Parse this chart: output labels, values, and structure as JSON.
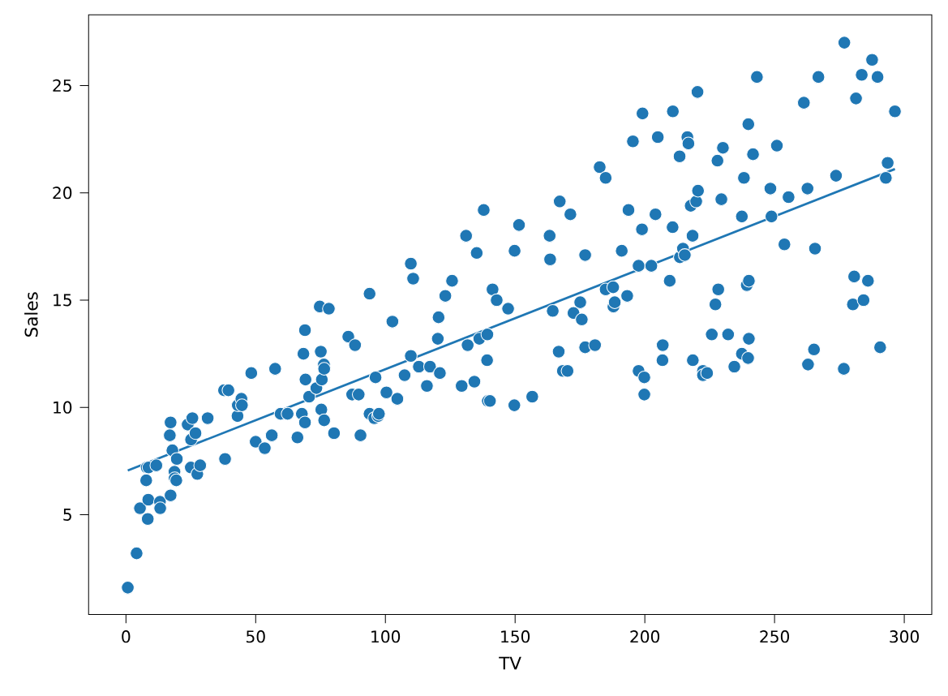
{
  "chart_data": {
    "type": "scatter",
    "xlabel": "TV",
    "ylabel": "Sales",
    "xlim": [
      -14.4,
      310.6
    ],
    "ylim": [
      0.35,
      28.3
    ],
    "xticks": [
      0,
      50,
      100,
      150,
      200,
      250,
      300
    ],
    "yticks": [
      5,
      10,
      15,
      20,
      25
    ],
    "grid": false,
    "series": [
      {
        "marker": "circle",
        "color": "#1f77b4",
        "x": [
          0.7,
          4.1,
          5.4,
          7.8,
          8.4,
          8.6,
          8.0,
          8.7,
          11.7,
          13.1,
          13.2,
          16.9,
          17.2,
          17.2,
          17.9,
          18.7,
          18.8,
          19.4,
          19.6,
          23.8,
          25.0,
          25.1,
          25.6,
          26.8,
          27.5,
          28.6,
          31.5,
          37.8,
          39.5,
          38.2,
          43.0,
          43.1,
          44.5,
          44.7,
          48.3,
          50.0,
          53.5,
          56.2,
          57.5,
          59.6,
          62.3,
          66.1,
          67.8,
          68.4,
          69.0,
          69.2,
          69.0,
          70.6,
          73.4,
          74.7,
          75.1,
          75.3,
          75.5,
          76.3,
          76.4,
          76.4,
          78.2,
          80.2,
          85.7,
          87.2,
          88.3,
          89.7,
          90.4,
          93.9,
          93.9,
          95.7,
          96.2,
          97.2,
          97.5,
          100.4,
          102.7,
          104.6,
          107.4,
          109.8,
          109.8,
          110.7,
          112.9,
          116.0,
          117.2,
          120.2,
          120.5,
          121.0,
          123.1,
          125.7,
          129.4,
          131.1,
          131.7,
          134.3,
          135.2,
          136.2,
          137.9,
          139.2,
          139.3,
          139.5,
          140.3,
          141.3,
          142.9,
          147.3,
          149.7,
          149.8,
          151.5,
          156.6,
          163.3,
          163.5,
          164.5,
          166.8,
          167.2,
          168.4,
          170.2,
          171.3,
          172.5,
          175.1,
          175.7,
          177.0,
          177.0,
          180.8,
          182.6,
          184.9,
          184.9,
          187.8,
          187.9,
          188.4,
          191.1,
          193.2,
          193.7,
          195.4,
          197.6,
          197.6,
          198.9,
          199.1,
          199.8,
          199.8,
          202.5,
          204.1,
          205.0,
          206.8,
          206.9,
          209.6,
          210.7,
          210.8,
          213.4,
          213.5,
          214.7,
          215.4,
          216.4,
          216.8,
          217.7,
          218.4,
          218.5,
          219.8,
          220.3,
          220.5,
          222.4,
          222.4,
          224.0,
          225.8,
          227.2,
          228.0,
          228.3,
          229.5,
          230.1,
          232.1,
          234.5,
          237.4,
          237.4,
          238.2,
          239.3,
          239.8,
          240.1,
          239.9,
          240.1,
          241.7,
          243.2,
          248.4,
          248.8,
          250.9,
          253.8,
          255.4,
          261.3,
          262.7,
          262.9,
          265.2,
          265.6,
          266.9,
          273.7,
          276.7,
          276.9,
          280.2,
          280.7,
          281.4,
          283.6,
          284.3,
          286.0,
          287.6,
          289.7,
          290.7,
          293.6,
          292.9,
          296.4
        ],
        "values": [
          1.6,
          3.2,
          5.3,
          6.6,
          4.8,
          5.7,
          7.2,
          7.2,
          7.3,
          5.6,
          5.3,
          8.7,
          9.3,
          5.9,
          8.0,
          7.0,
          6.7,
          6.6,
          7.6,
          9.2,
          7.2,
          8.5,
          9.5,
          8.8,
          6.9,
          7.3,
          9.5,
          10.8,
          10.8,
          7.6,
          9.6,
          10.1,
          10.4,
          10.1,
          11.6,
          8.4,
          8.1,
          8.7,
          11.8,
          9.7,
          9.7,
          8.6,
          9.7,
          12.5,
          13.6,
          11.3,
          9.3,
          10.5,
          10.9,
          14.7,
          12.6,
          9.9,
          11.3,
          12.0,
          11.8,
          9.4,
          14.6,
          8.8,
          13.3,
          10.6,
          12.9,
          10.6,
          8.7,
          15.3,
          9.7,
          9.5,
          11.4,
          9.6,
          9.7,
          10.7,
          14.0,
          10.4,
          11.5,
          16.7,
          12.4,
          16.0,
          11.9,
          11.0,
          11.9,
          13.2,
          14.2,
          11.6,
          15.2,
          15.9,
          11.0,
          18.0,
          12.9,
          11.2,
          17.2,
          13.2,
          19.2,
          12.2,
          13.4,
          10.3,
          10.3,
          15.5,
          15.0,
          14.6,
          10.1,
          17.3,
          18.5,
          10.5,
          18.0,
          16.9,
          14.5,
          12.6,
          19.6,
          11.7,
          11.7,
          19.0,
          14.4,
          14.9,
          14.1,
          12.8,
          17.1,
          12.9,
          21.2,
          15.5,
          20.7,
          15.6,
          14.7,
          14.9,
          17.3,
          15.2,
          19.2,
          22.4,
          16.6,
          11.7,
          18.3,
          23.7,
          11.4,
          10.6,
          16.6,
          19.0,
          22.6,
          12.2,
          12.9,
          15.9,
          18.4,
          23.8,
          21.7,
          17.0,
          17.4,
          17.1,
          22.6,
          22.3,
          19.4,
          18.0,
          12.2,
          19.6,
          24.7,
          20.1,
          11.7,
          11.5,
          11.6,
          13.4,
          14.8,
          21.5,
          15.5,
          19.7,
          22.1,
          13.4,
          11.9,
          12.5,
          18.9,
          20.7,
          15.7,
          12.3,
          13.2,
          23.2,
          15.9,
          21.8,
          25.4,
          20.2,
          18.9,
          22.2,
          17.6,
          19.8,
          24.2,
          20.2,
          12.0,
          12.7,
          17.4,
          25.4,
          20.8,
          11.8,
          27.0,
          14.8,
          16.1,
          24.4,
          25.5,
          15.0,
          15.9,
          26.2,
          25.4,
          12.8,
          21.4,
          20.7,
          23.8
        ]
      },
      {
        "type": "line",
        "marker": "none",
        "line_style": "solid",
        "color": "#1f77b4",
        "x": [
          0.7,
          296.4
        ],
        "values": [
          7.06,
          21.11
        ]
      }
    ]
  }
}
